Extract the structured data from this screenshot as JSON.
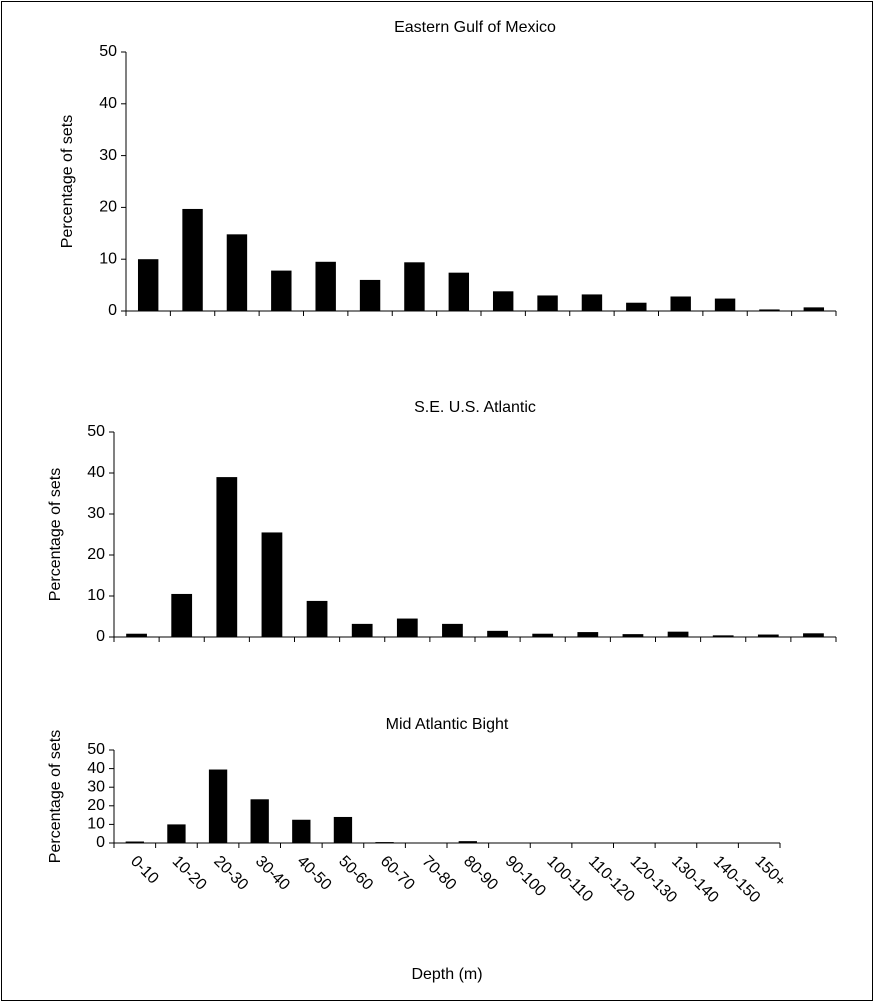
{
  "chart_data": [
    {
      "type": "bar",
      "title": "Eastern Gulf of Mexico",
      "y_label": "Percentage of sets",
      "values": [
        10,
        19.7,
        14.8,
        7.8,
        9.5,
        6,
        9.4,
        7.4,
        3.8,
        3,
        3.2,
        1.6,
        2.8,
        2.4,
        0.3,
        0.7
      ],
      "color": "#000000",
      "ylim": [
        0,
        50
      ],
      "yticks": [
        0,
        10,
        20,
        30,
        40,
        50
      ]
    },
    {
      "type": "bar",
      "title": "S.E. U.S. Atlantic",
      "y_label": "Percentage of sets",
      "values": [
        0.8,
        10.5,
        39,
        25.5,
        8.8,
        3.2,
        4.5,
        3.2,
        1.5,
        0.8,
        1.2,
        0.7,
        1.3,
        0.4,
        0.6,
        0.9
      ],
      "color": "#000000",
      "ylim": [
        0,
        50
      ],
      "yticks": [
        0,
        10,
        20,
        30,
        40,
        50
      ]
    },
    {
      "type": "bar",
      "title": "Mid Atlantic Bight",
      "y_label": "Percentage of sets",
      "x_label": "Depth (m)",
      "categories": [
        "0-10",
        "10-20",
        "20-30",
        "30-40",
        "40-50",
        "50-60",
        "60-70",
        "70-80",
        "80-90",
        "90-100",
        "100-110",
        "110-120",
        "120-130",
        "130-140",
        "140-150",
        "150+"
      ],
      "values": [
        0.8,
        10,
        39.5,
        23.5,
        12.5,
        14,
        0.5,
        0,
        1,
        0,
        0,
        0,
        0,
        0,
        0,
        0
      ],
      "color": "#000000",
      "ylim": [
        0,
        50
      ],
      "yticks": [
        0,
        10,
        20,
        30,
        40,
        50
      ]
    }
  ]
}
